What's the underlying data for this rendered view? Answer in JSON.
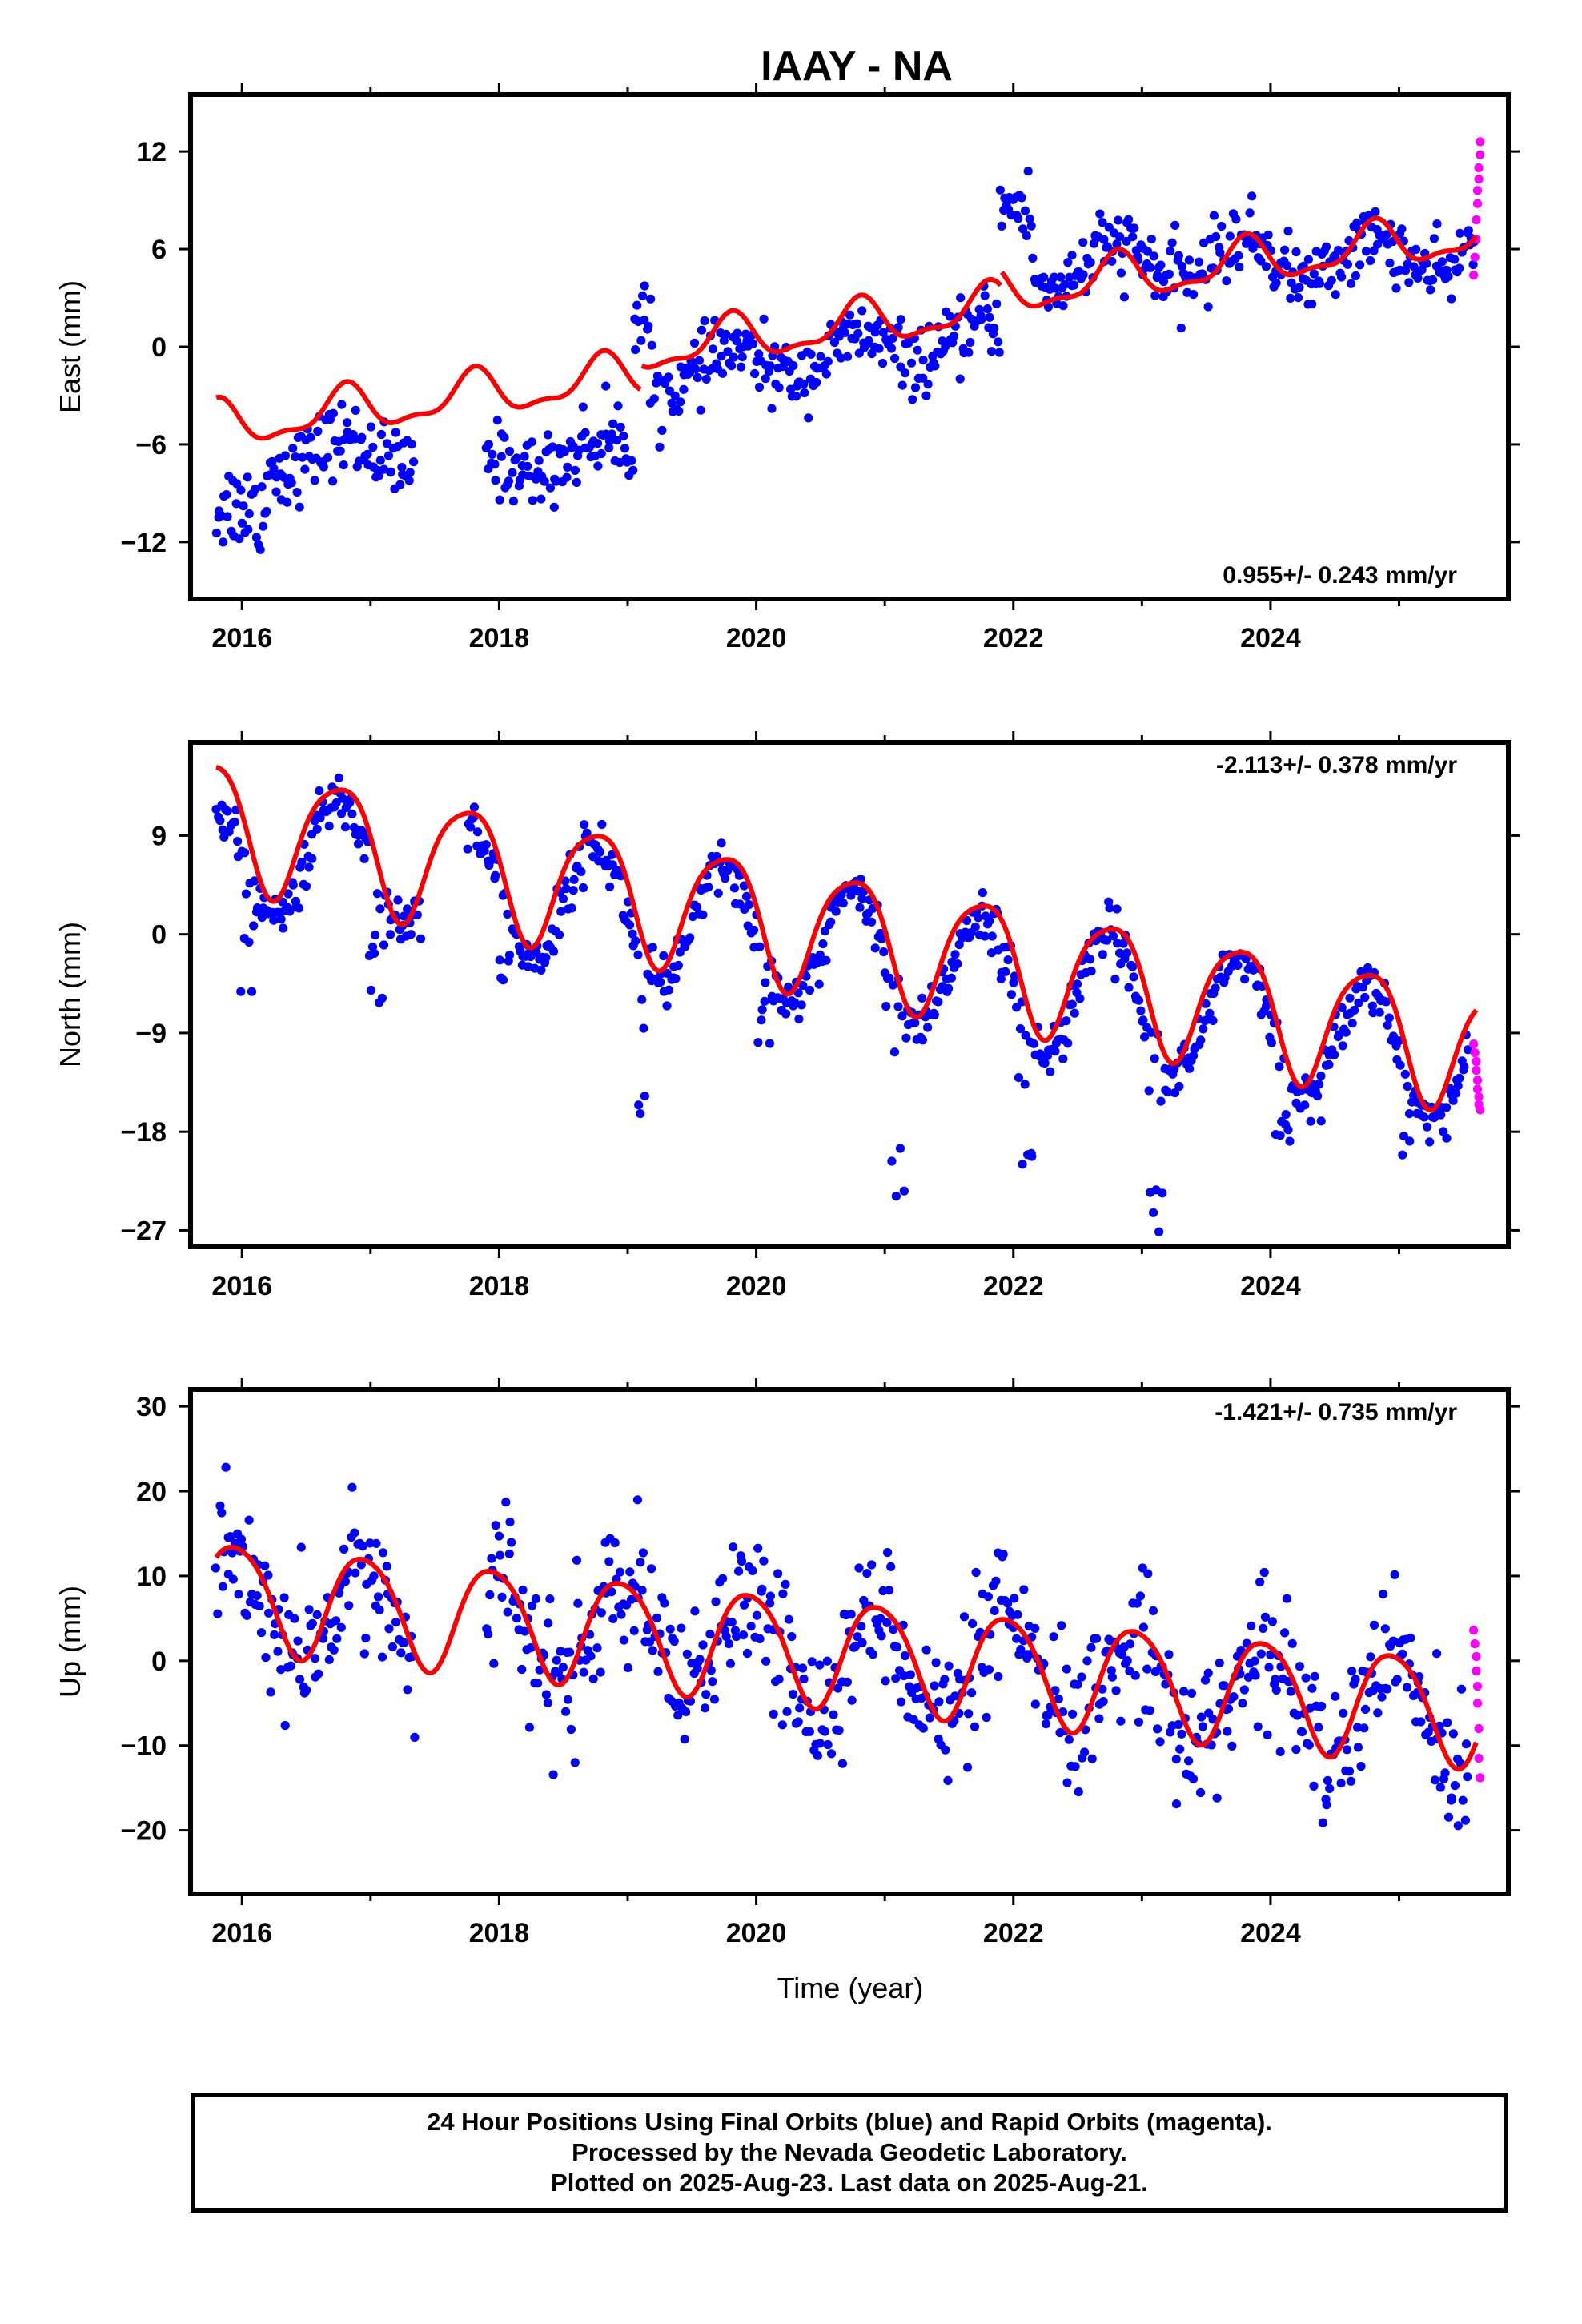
{
  "title": "IAAY - NA",
  "chart_data": [
    {
      "type": "scatter",
      "component": "East",
      "ylabel": "East (mm)",
      "xlabel": "",
      "xlim": [
        2015.6,
        2025.85
      ],
      "ylim": [
        -15.5,
        15.5
      ],
      "yticks": [
        -12,
        -6,
        0,
        6,
        12
      ],
      "ytick_labels": [
        "−12",
        "−6",
        "0",
        "6",
        "12"
      ],
      "xticks": [
        2016,
        2018,
        2020,
        2022,
        2024
      ],
      "xtick_labels": [
        "2016",
        "2018",
        "2020",
        "2022",
        "2024"
      ],
      "rate_label": "0.955+/- 0.243 mm/yr",
      "rate_position": "bottom-right",
      "data_segments": [
        {
          "start": 2015.8,
          "end": 2016.2,
          "offset": -11.2,
          "slope": 5.5,
          "noise": 1.4,
          "seasonal": 1.2
        },
        {
          "start": 2016.2,
          "end": 2017.35,
          "offset": -6.6,
          "slope": 0.0,
          "noise": 1.1,
          "seasonal": 1.0
        },
        {
          "start": 2017.9,
          "end": 2019.05,
          "offset": -7.3,
          "slope": 1.0,
          "noise": 1.1,
          "seasonal": 0.8
        },
        {
          "start": 2019.05,
          "end": 2019.18,
          "offset": 1.5,
          "slope": 0.0,
          "noise": 1.5,
          "seasonal": 0.0
        },
        {
          "start": 2019.18,
          "end": 2021.9,
          "offset": -1.8,
          "slope": 0.9,
          "noise": 1.0,
          "seasonal": 1.0
        },
        {
          "start": 2021.9,
          "end": 2022.15,
          "offset": 8.5,
          "slope": 0.0,
          "noise": 1.2,
          "seasonal": 0.0
        },
        {
          "start": 2022.15,
          "end": 2024.0,
          "offset": 4.8,
          "slope": 0.4,
          "noise": 1.1,
          "seasonal": 1.2
        },
        {
          "start": 2024.0,
          "end": 2025.35,
          "offset": 5.2,
          "slope": 0.3,
          "noise": 1.0,
          "seasonal": 1.2
        },
        {
          "start": 2025.35,
          "end": 2025.6,
          "offset": 4.0,
          "slope": 12.0,
          "noise": 1.0,
          "seasonal": 0.0
        }
      ],
      "rapid_points": [
        [
          2025.58,
          4.4
        ],
        [
          2025.59,
          5.5
        ],
        [
          2025.6,
          6.6
        ],
        [
          2025.6,
          7.8
        ],
        [
          2025.61,
          8.8
        ],
        [
          2025.61,
          9.6
        ],
        [
          2025.62,
          10.3
        ],
        [
          2025.62,
          11.0
        ],
        [
          2025.63,
          11.8
        ],
        [
          2025.63,
          12.6
        ]
      ],
      "model": {
        "t0": 2015.8,
        "offset": -4.9,
        "rate": 0.955,
        "annual_amp": 1.3,
        "annual_phase": 0.55,
        "semi_amp": 0.5,
        "semi_phase": 0.2,
        "steps": [
          {
            "time": 2019.1,
            "size": 1.5
          },
          {
            "time": 2021.9,
            "size": 0.9
          }
        ]
      }
    },
    {
      "type": "scatter",
      "component": "North",
      "ylabel": "North (mm)",
      "xlabel": "",
      "xlim": [
        2015.6,
        2025.85
      ],
      "ylim": [
        -28.5,
        17.5
      ],
      "yticks": [
        -27,
        -18,
        -9,
        0,
        9
      ],
      "ytick_labels": [
        "−27",
        "−18",
        "−9",
        "0",
        "9"
      ],
      "xticks": [
        2016,
        2018,
        2020,
        2022,
        2024
      ],
      "xtick_labels": [
        "2016",
        "2018",
        "2020",
        "2022",
        "2024"
      ],
      "rate_label": "-2.113+/- 0.378 mm/yr",
      "rate_position": "top-right",
      "data_segments": [
        {
          "start": 2015.8,
          "end": 2017.4,
          "offset": 7.0,
          "slope": -0.3,
          "noise": 1.2,
          "seasonal": 5.5
        },
        {
          "start": 2017.75,
          "end": 2025.55,
          "offset": 4.5,
          "slope": -2.1,
          "noise": 1.2,
          "seasonal": 5.8
        }
      ],
      "dips": [
        {
          "time": 2016.05,
          "depth": -5.5
        },
        {
          "time": 2017.05,
          "depth": -6.5
        },
        {
          "time": 2018.05,
          "depth": -5.5
        },
        {
          "time": 2019.1,
          "depth": -19.0
        },
        {
          "time": 2020.05,
          "depth": -10.5
        },
        {
          "time": 2021.1,
          "depth": -24.0
        },
        {
          "time": 2022.1,
          "depth": -25.0
        },
        {
          "time": 2023.1,
          "depth": -27.5
        },
        {
          "time": 2024.1,
          "depth": -21.5
        },
        {
          "time": 2025.05,
          "depth": -22.0
        }
      ],
      "rapid_points": [
        [
          2025.58,
          -10.0
        ],
        [
          2025.59,
          -10.8
        ],
        [
          2025.6,
          -11.6
        ],
        [
          2025.6,
          -12.4
        ],
        [
          2025.61,
          -13.3
        ],
        [
          2025.61,
          -14.1
        ],
        [
          2025.62,
          -14.8
        ],
        [
          2025.62,
          -15.5
        ],
        [
          2025.63,
          -16.0
        ]
      ],
      "model": {
        "t0": 2015.8,
        "offset": 10.5,
        "rate": -2.113,
        "annual_amp": 5.6,
        "annual_phase": 0.5,
        "semi_amp": 1.0,
        "semi_phase": 0.35,
        "steps": []
      }
    },
    {
      "type": "scatter",
      "component": "Up",
      "ylabel": "Up (mm)",
      "xlabel": "Time (year)",
      "xlim": [
        2015.6,
        2025.85
      ],
      "ylim": [
        -27.5,
        32
      ],
      "yticks": [
        -20,
        -10,
        0,
        10,
        20,
        30
      ],
      "ytick_labels": [
        "−20",
        "−10",
        "0",
        "10",
        "20",
        "30"
      ],
      "xticks": [
        2016,
        2018,
        2020,
        2022,
        2024
      ],
      "xtick_labels": [
        "2016",
        "2018",
        "2020",
        "2022",
        "2024"
      ],
      "rate_label": "-1.421+/- 0.735 mm/yr",
      "rate_position": "top-right",
      "data_segments": [
        {
          "start": 2015.8,
          "end": 2017.35,
          "offset": 6.0,
          "slope": -1.0,
          "noise": 4.2,
          "seasonal": 6.0
        },
        {
          "start": 2017.9,
          "end": 2025.55,
          "offset": 4.0,
          "slope": -1.4,
          "noise": 4.2,
          "seasonal": 6.0
        }
      ],
      "rapid_points": [
        [
          2025.58,
          3.6
        ],
        [
          2025.59,
          2.0
        ],
        [
          2025.6,
          0.5
        ],
        [
          2025.6,
          -1.2
        ],
        [
          2025.61,
          -3.0
        ],
        [
          2025.61,
          -5.0
        ],
        [
          2025.62,
          -8.0
        ],
        [
          2025.62,
          -11.5
        ],
        [
          2025.63,
          -13.8
        ]
      ],
      "model": {
        "t0": 2015.8,
        "offset": 8.0,
        "rate": -1.421,
        "annual_amp": 6.3,
        "annual_phase": 0.7,
        "semi_amp": 0.8,
        "semi_phase": 0.1,
        "steps": []
      }
    }
  ],
  "colors": {
    "final_orbits": "#0000ff",
    "rapid_orbits": "#ff00ff",
    "model": "#ff0000",
    "frame": "#000000"
  },
  "footer": {
    "line1": "24 Hour Positions Using Final Orbits (blue) and Rapid Orbits (magenta).",
    "line2": "Processed by the Nevada Geodetic Laboratory.",
    "line3": "Plotted on 2025-Aug-23. Last data on 2025-Aug-21."
  }
}
